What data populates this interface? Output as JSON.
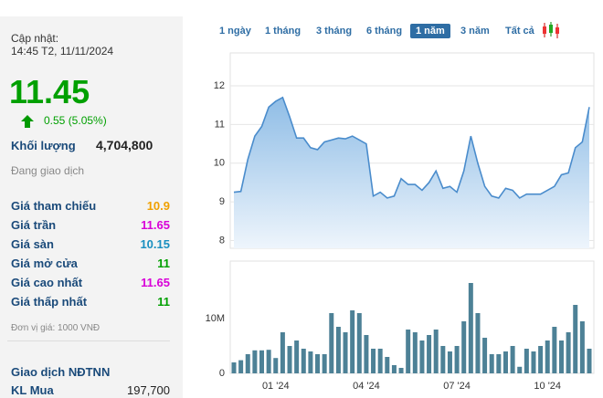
{
  "panel": {
    "updated_label": "Cập nhật:",
    "updated_time": "14:45 T2, 11/11/2024",
    "price": "11.45",
    "change": "0.55 (5.05%)",
    "volume_label": "Khối lượng",
    "volume": "4,704,800",
    "status": "Đang giao dịch",
    "rows": [
      {
        "label": "Giá tham chiếu",
        "value": "10.9",
        "color": "#f0a000"
      },
      {
        "label": "Giá trần",
        "value": "11.65",
        "color": "#d800d8"
      },
      {
        "label": "Giá sàn",
        "value": "10.15",
        "color": "#1a8fc0"
      },
      {
        "label": "Giá mở cửa",
        "value": "11",
        "color": "#00a000"
      },
      {
        "label": "Giá cao nhất",
        "value": "11.65",
        "color": "#d800d8"
      },
      {
        "label": "Giá thấp nhất",
        "value": "11",
        "color": "#00a000"
      }
    ],
    "unit_note": "Đơn vị giá: 1000 VNĐ",
    "foreign_title": "Giao dịch NĐTNN",
    "buy_label": "KL Mua",
    "buy_value": "197,700"
  },
  "range_buttons": [
    "1 ngày",
    "1 tháng",
    "3 tháng",
    "6 tháng",
    "1 năm",
    "3 năm",
    "Tất cả"
  ],
  "active_range": 4,
  "chart_data": [
    {
      "type": "area",
      "color": "#4a8ccc",
      "ylim": [
        7.8,
        12.85
      ],
      "yticks": [
        8,
        9,
        10,
        11,
        12
      ],
      "grid": true,
      "values": [
        9.25,
        9.27,
        10.1,
        10.7,
        10.95,
        11.45,
        11.6,
        11.7,
        11.2,
        10.65,
        10.65,
        10.4,
        10.35,
        10.55,
        10.6,
        10.65,
        10.63,
        10.7,
        10.6,
        10.5,
        9.15,
        9.25,
        9.1,
        9.15,
        9.6,
        9.45,
        9.45,
        9.3,
        9.5,
        9.8,
        9.35,
        9.4,
        9.25,
        9.8,
        10.7,
        10.0,
        9.4,
        9.15,
        9.1,
        9.35,
        9.3,
        9.1,
        9.2,
        9.2,
        9.2,
        9.3,
        9.4,
        9.7,
        9.75,
        10.4,
        10.55,
        11.45
      ]
    },
    {
      "type": "bar",
      "color": "#4d8196",
      "ylim": [
        0,
        20500000
      ],
      "yticks": [
        0,
        {
          "value": 10000000,
          "label": "10M"
        }
      ],
      "categories": [
        null,
        null,
        null,
        null,
        null,
        null,
        "01 '24",
        null,
        null,
        null,
        null,
        null,
        null,
        null,
        null,
        null,
        null,
        null,
        null,
        "04 '24",
        null,
        null,
        null,
        null,
        null,
        null,
        null,
        null,
        null,
        null,
        null,
        null,
        "07 '24",
        null,
        null,
        null,
        null,
        null,
        null,
        null,
        null,
        null,
        null,
        null,
        null,
        "10 '24",
        null,
        null,
        null,
        null,
        null,
        null
      ],
      "values": [
        2000000,
        2400000,
        3500000,
        4200000,
        4200000,
        4300000,
        2800000,
        7500000,
        5000000,
        6000000,
        4500000,
        4000000,
        3500000,
        3500000,
        11000000,
        8500000,
        7500000,
        11500000,
        11000000,
        7000000,
        4500000,
        4500000,
        3000000,
        1500000,
        1000000,
        8000000,
        7500000,
        6000000,
        7000000,
        8000000,
        5000000,
        4000000,
        5000000,
        9500000,
        16500000,
        11000000,
        6500000,
        3500000,
        3500000,
        4000000,
        5000000,
        1200000,
        4500000,
        4000000,
        5000000,
        6000000,
        8500000,
        6000000,
        7500000,
        12500000,
        9500000,
        4500000
      ]
    }
  ]
}
